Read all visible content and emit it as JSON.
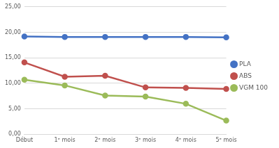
{
  "chart_data": {
    "type": "line",
    "categories": [
      "Début",
      "1ᵉ mois",
      "2ᵉ mois",
      "3ᵉ mois",
      "4ᵉ mois",
      "5ᵉ mois"
    ],
    "series": [
      {
        "name": "PLA",
        "color": "#4472c4",
        "values": [
          19.2,
          19.1,
          19.1,
          19.1,
          19.1,
          19.0
        ]
      },
      {
        "name": "ABS",
        "color": "#c0504d",
        "values": [
          14.1,
          11.3,
          11.5,
          9.2,
          9.1,
          8.9
        ]
      },
      {
        "name": "VGM 100",
        "color": "#9bbb59",
        "values": [
          10.7,
          9.6,
          7.6,
          7.4,
          6.0,
          2.7
        ]
      }
    ],
    "ylim": [
      0,
      25
    ],
    "yticks": [
      {
        "value": 0,
        "label": "0,00"
      },
      {
        "value": 5,
        "label": "5,00"
      },
      {
        "value": 10,
        "label": "10,00"
      },
      {
        "value": 15,
        "label": "15,00"
      },
      {
        "value": 20,
        "label": "20,00"
      },
      {
        "value": 25,
        "label": "25,00"
      }
    ],
    "grid": true,
    "legend": "right",
    "marker": "circle"
  }
}
